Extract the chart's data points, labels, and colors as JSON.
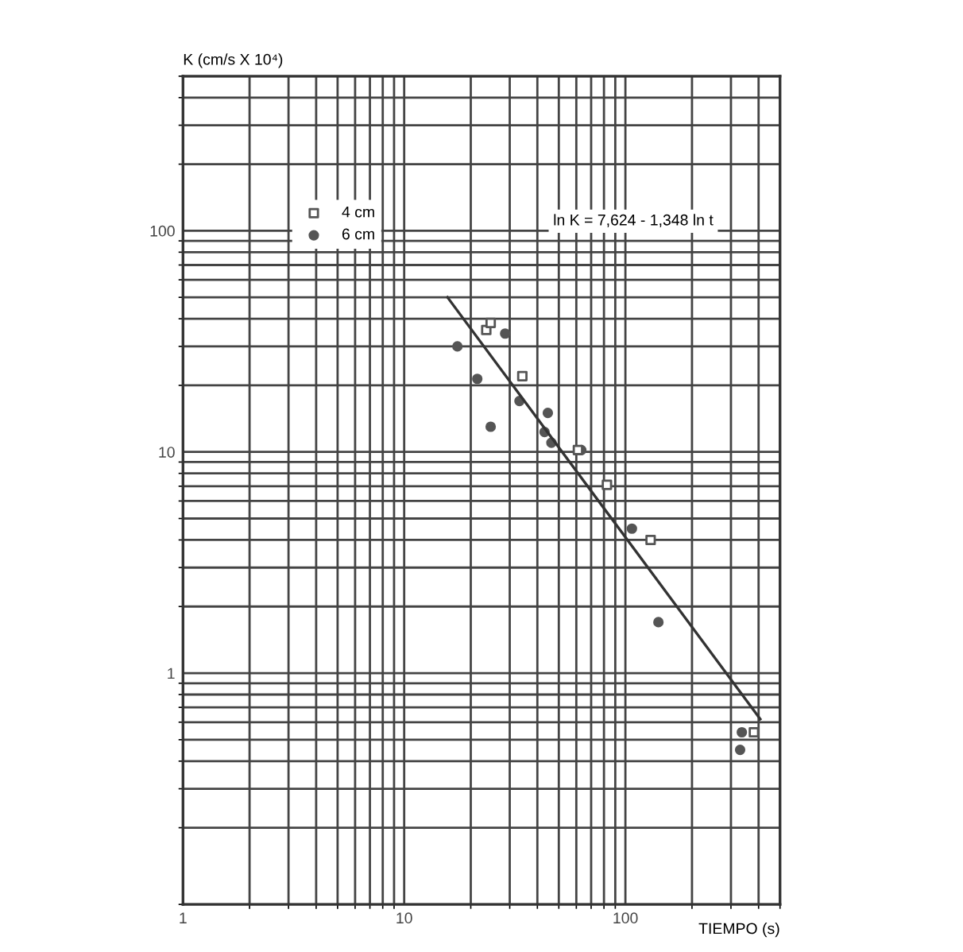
{
  "chart_data": {
    "type": "scatter",
    "xlabel": "TIEMPO (s)",
    "ylabel": "K (cm/s X 10⁴)",
    "annotations": [
      "ln K = 7,624 - 1,348 ln t"
    ],
    "log": "xy",
    "xlim": [
      1,
      500
    ],
    "ylim": [
      0.09,
      500
    ],
    "xticks": [
      1,
      10,
      100
    ],
    "yticks": [
      1,
      10,
      100
    ],
    "grid": true,
    "legend": "top left",
    "series": [
      {
        "name": "4 cm",
        "marker": "square",
        "color": "#555555",
        "x": [
          23.5,
          24.6,
          34.2,
          61,
          82.5,
          130,
          381
        ],
        "values": [
          35.6,
          38.3,
          22.0,
          10.2,
          7.1,
          4.0,
          0.54
        ]
      },
      {
        "name": "6 cm",
        "marker": "circle",
        "color": "#555555",
        "x": [
          17.4,
          28.6,
          21.4,
          24.6,
          33.2,
          44.6,
          43.1,
          46.3,
          63.2,
          107,
          141,
          336,
          330
        ],
        "values": [
          30,
          34.3,
          21.4,
          13.0,
          17.0,
          15.0,
          12.3,
          11.0,
          10.2,
          4.5,
          1.7,
          0.54,
          0.45
        ]
      },
      {
        "type": "line",
        "color": "#333333",
        "x": [
          15.7,
          407
        ],
        "values": [
          50,
          0.62
        ]
      }
    ]
  }
}
